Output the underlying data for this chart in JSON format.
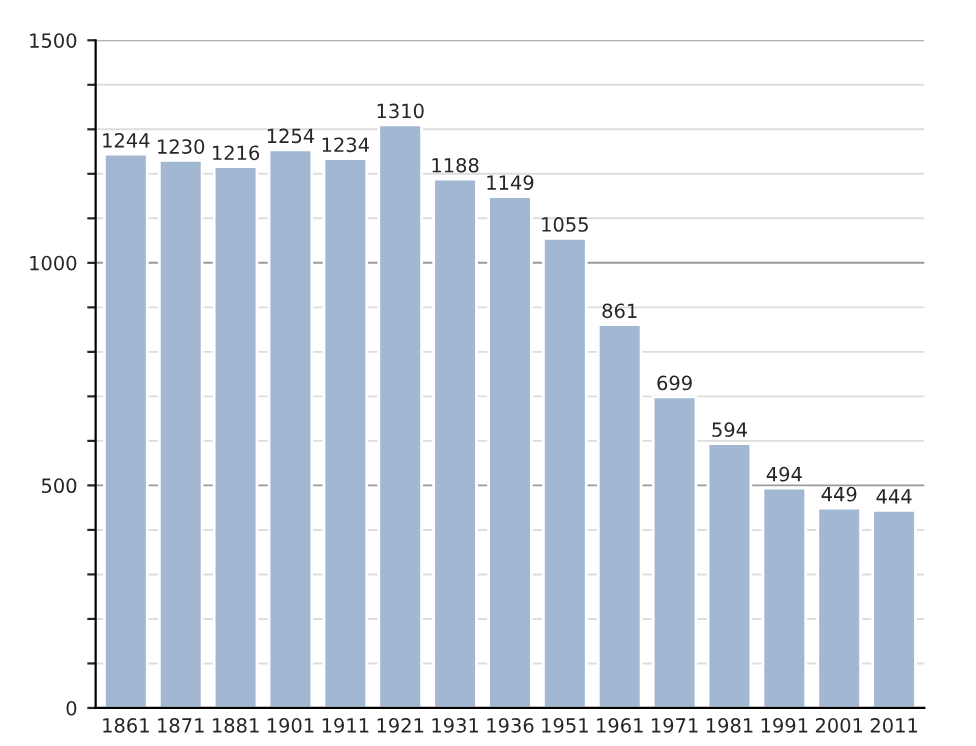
{
  "chart_data": {
    "type": "bar",
    "categories": [
      "1861",
      "1871",
      "1881",
      "1901",
      "1911",
      "1921",
      "1931",
      "1936",
      "1951",
      "1961",
      "1971",
      "1981",
      "1991",
      "2001",
      "2011"
    ],
    "values": [
      1244,
      1230,
      1216,
      1254,
      1234,
      1310,
      1188,
      1149,
      1055,
      861,
      699,
      594,
      494,
      449,
      444
    ],
    "color": "#a2b7d2",
    "ylim": [
      0,
      1500
    ],
    "yticks": [
      0,
      {
        "value": 100,
        "label": null
      },
      {
        "value": 200,
        "label": null
      },
      {
        "value": 300,
        "label": null
      },
      {
        "value": 400,
        "label": null
      },
      500,
      {
        "value": 600,
        "label": null
      },
      {
        "value": 700,
        "label": null
      },
      {
        "value": 800,
        "label": null
      },
      {
        "value": 900,
        "label": null
      },
      1000,
      {
        "value": 1100,
        "label": null
      },
      {
        "value": 1200,
        "label": null
      },
      {
        "value": 1300,
        "label": null
      },
      {
        "value": 1400,
        "label": null
      },
      1500
    ],
    "grid": "y",
    "data_labels": true
  }
}
